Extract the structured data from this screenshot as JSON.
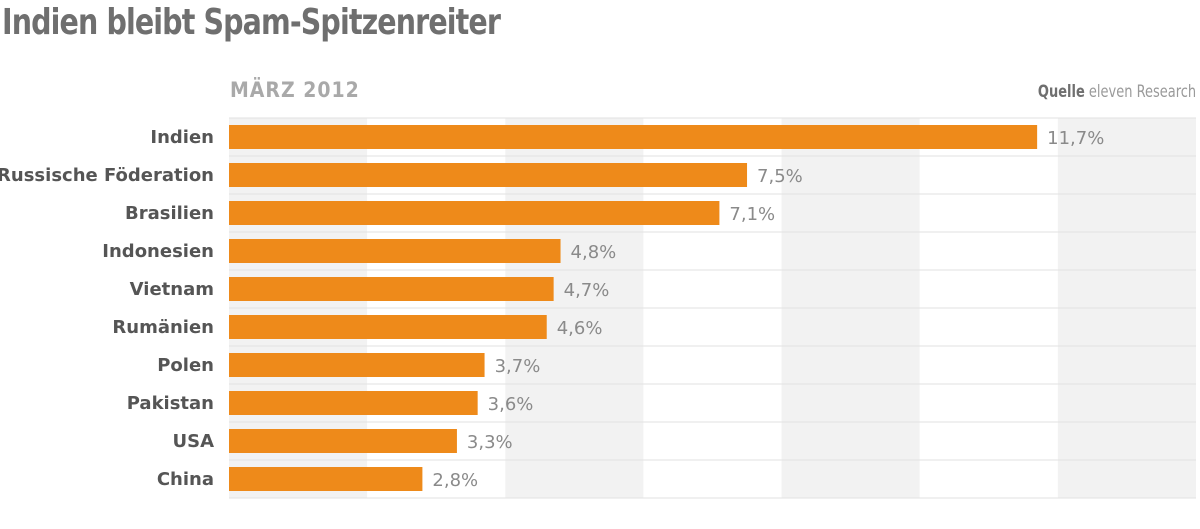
{
  "chart_data": {
    "type": "bar",
    "orientation": "horizontal",
    "title": "Indien bleibt Spam-Spitzenreiter",
    "subtitle": "MÄRZ 2012",
    "source_label": "Quelle",
    "source": "eleven Research",
    "categories": [
      "Indien",
      "Russische Föderation",
      "Brasilien",
      "Indonesien",
      "Vietnam",
      "Rumänien",
      "Polen",
      "Pakistan",
      "USA",
      "China"
    ],
    "values": [
      11.7,
      7.5,
      7.1,
      4.8,
      4.7,
      4.6,
      3.7,
      3.6,
      3.3,
      2.8
    ],
    "data_labels": [
      "11,7%",
      "7,5%",
      "7,1%",
      "4,8%",
      "4,7%",
      "4,6%",
      "3,7%",
      "3,6%",
      "3,3%",
      "2,8%"
    ],
    "xlim": [
      0,
      14
    ],
    "background_bands": "alternating every 2%",
    "grid": false,
    "colors": {
      "bar": "#ee8a1a",
      "band": "#f2f2f2",
      "title": "#6f6f6f"
    }
  }
}
